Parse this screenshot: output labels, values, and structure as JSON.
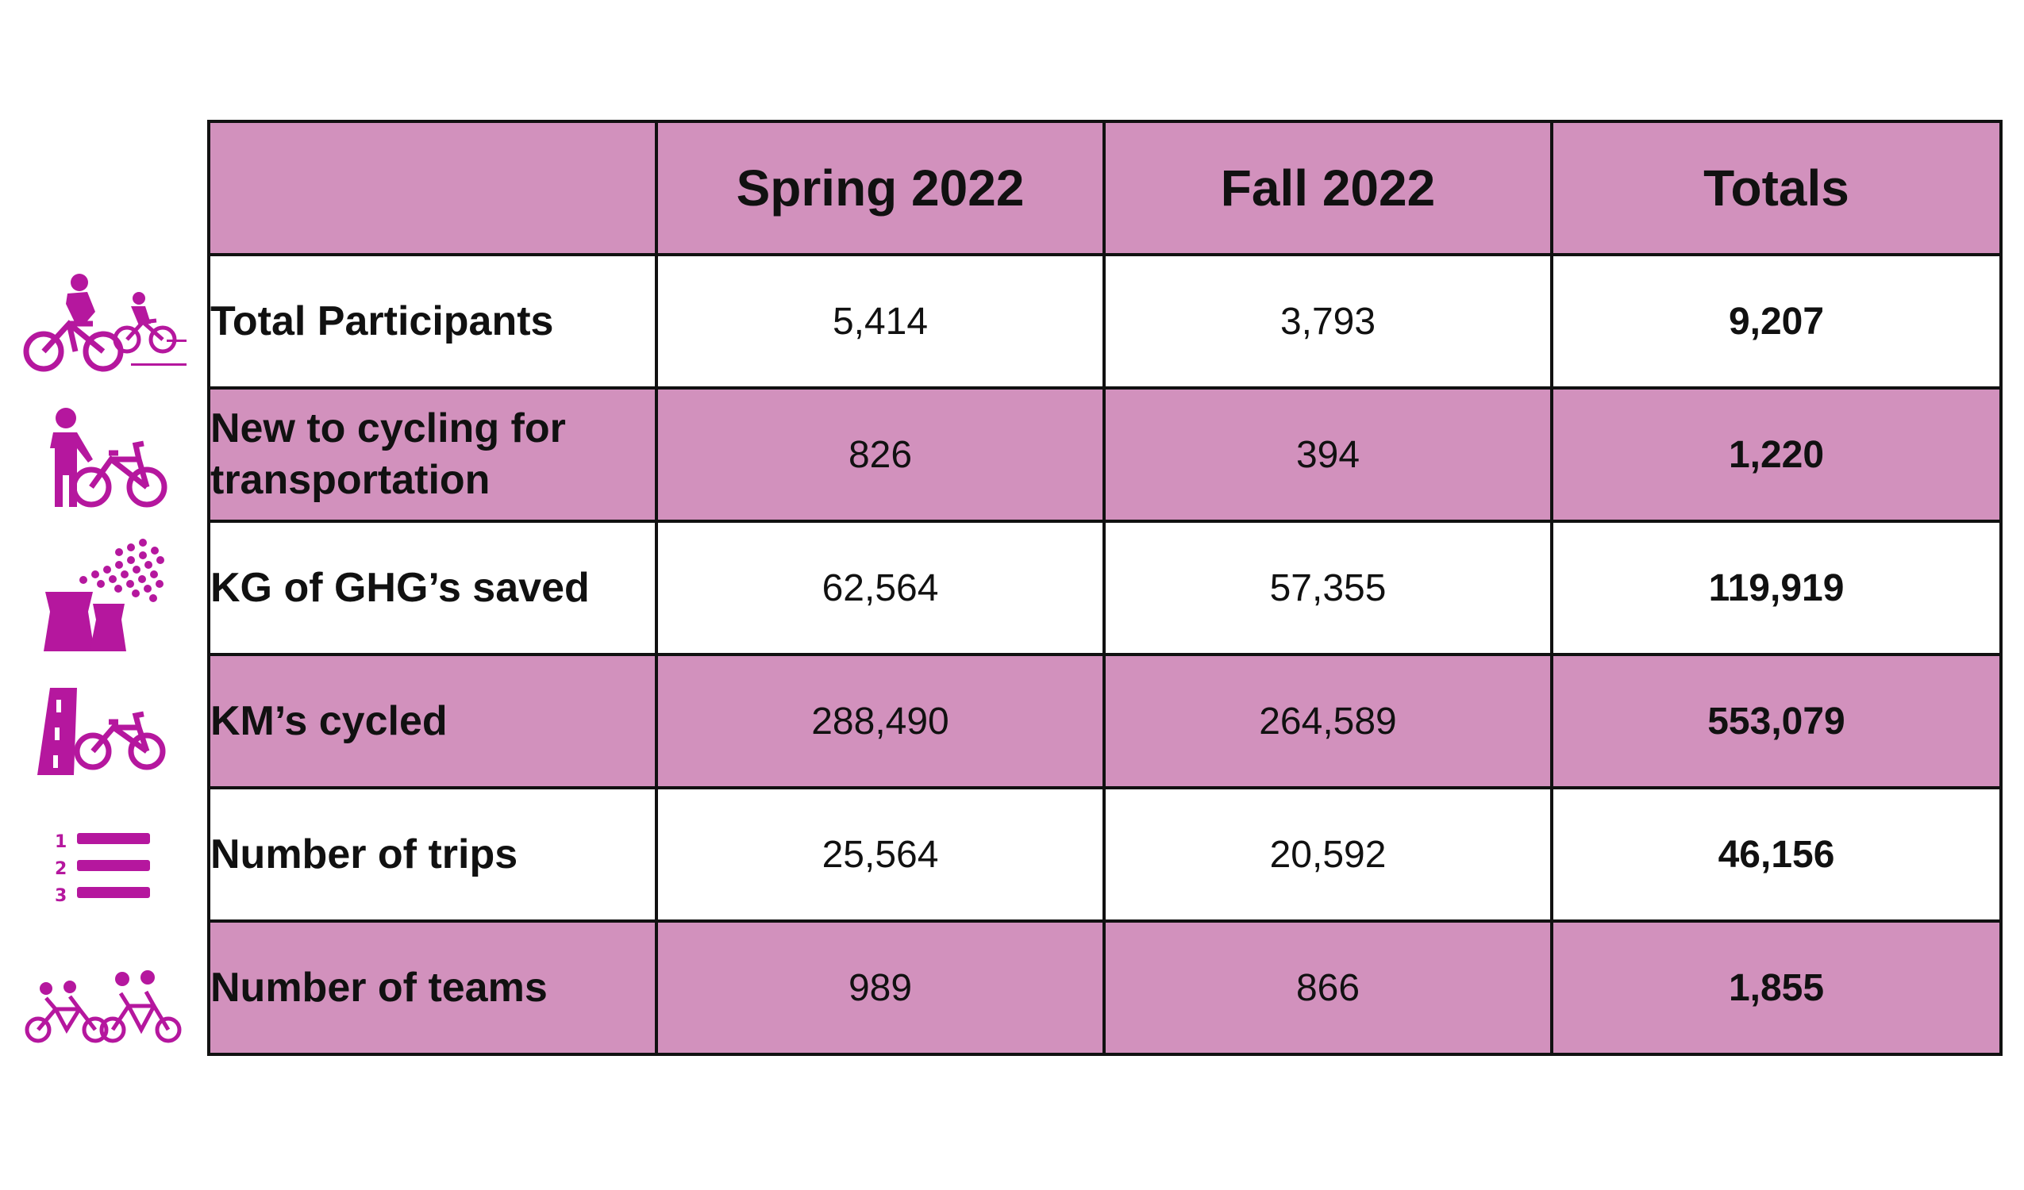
{
  "colors": {
    "header_bg": "#d291bd",
    "alt_row_bg": "#d291bd",
    "icon_magenta": "#b5179e",
    "border": "#111111"
  },
  "table": {
    "headers": [
      "",
      "Spring 2022",
      "Fall 2022",
      "Totals"
    ],
    "rows": [
      {
        "label": "Total Participants",
        "spring": "5,414",
        "fall": "3,793",
        "total": "9,207",
        "icon": "cyclists-adult-child-icon"
      },
      {
        "label": "New to cycling for transportation",
        "spring": "826",
        "fall": "394",
        "total": "1,220",
        "icon": "person-with-bike-icon"
      },
      {
        "label": "KG of GHG’s saved",
        "spring": "62,564",
        "fall": "57,355",
        "total": "119,919",
        "icon": "cooling-tower-emissions-icon"
      },
      {
        "label": "KM’s cycled",
        "spring": "288,490",
        "fall": "264,589",
        "total": "553,079",
        "icon": "road-bike-icon"
      },
      {
        "label": "Number of trips",
        "spring": "25,564",
        "fall": "20,592",
        "total": "46,156",
        "icon": "numbered-list-icon"
      },
      {
        "label": "Number of teams",
        "spring": "989",
        "fall": "866",
        "total": "1,855",
        "icon": "tandem-team-bikes-icon"
      }
    ]
  }
}
